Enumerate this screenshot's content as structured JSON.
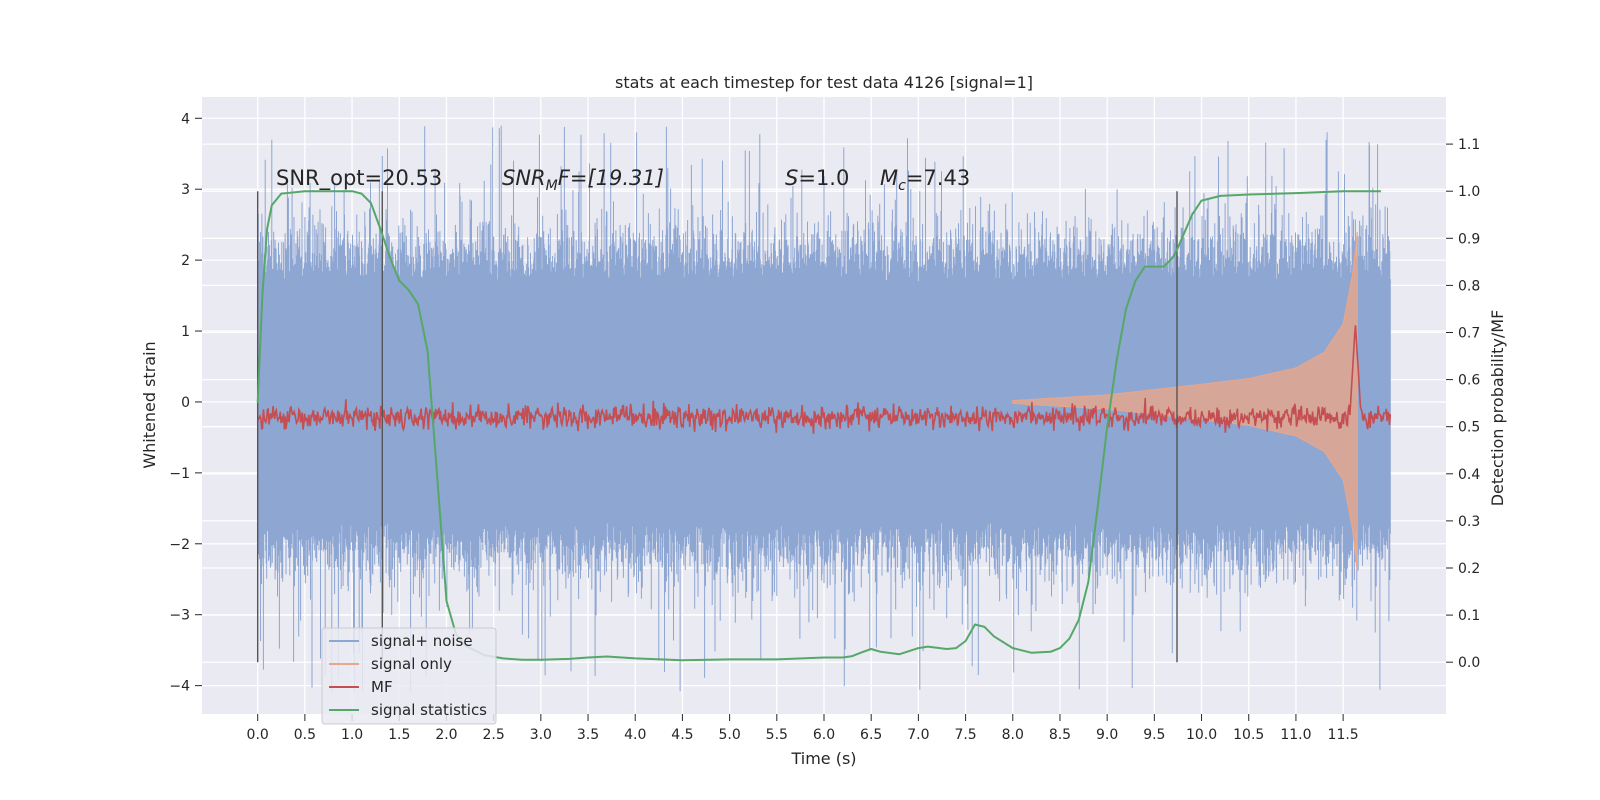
{
  "chart_data": {
    "type": "line",
    "title": "stats at each timestep for test data 4126 [signal=1]",
    "xlabel": "Time (s)",
    "ylabel": "Whitened strain",
    "y2label": "Detection probability/MF",
    "xlim": [
      -0.59,
      12.59
    ],
    "ylim": [
      -4.4,
      4.3
    ],
    "y2lim": [
      -0.11,
      1.2
    ],
    "x_ticks": [
      "0.0",
      "0.5",
      "1.0",
      "1.5",
      "2.0",
      "2.5",
      "3.0",
      "3.5",
      "4.0",
      "4.5",
      "5.0",
      "5.5",
      "6.0",
      "6.5",
      "7.0",
      "7.5",
      "8.0",
      "8.5",
      "9.0",
      "9.5",
      "10.0",
      "10.5",
      "11.0",
      "11.5"
    ],
    "y_ticks": [
      "4",
      "3",
      "2",
      "1",
      "0",
      "−1",
      "−2",
      "−3",
      "−4"
    ],
    "y2_ticks": [
      "1.1",
      "1.0",
      "0.9",
      "0.8",
      "0.7",
      "0.6",
      "0.5",
      "0.4",
      "0.3",
      "0.2",
      "0.1",
      "0.0"
    ],
    "grid": true,
    "legend_position": "lower-left",
    "annotations": {
      "snr_opt": "SNR_opt=20.53",
      "snr_mf_name": "SNR",
      "snr_mf_sub": "M",
      "snr_mf_value": "F=[19.31]",
      "s_name": "S",
      "s_value": "=1.0",
      "mc_name": "M",
      "mc_sub": "c",
      "mc_value": "=7.43"
    },
    "vlines_x": [
      0.0,
      1.32,
      9.74
    ],
    "series": [
      {
        "name": "signal+ noise",
        "color": "#8ea6d2",
        "x_range": [
          0.0,
          12.0
        ],
        "typical_band": [
          -1.7,
          1.7
        ],
        "peak_range": [
          -4.1,
          3.9
        ]
      },
      {
        "name": "signal only",
        "color": "#e9a68a",
        "envelope": {
          "t": [
            8.0,
            9.0,
            10.0,
            10.5,
            11.0,
            11.3,
            11.5,
            11.6,
            11.65
          ],
          "amplitude": [
            0.02,
            0.1,
            0.25,
            0.33,
            0.48,
            0.7,
            1.1,
            1.8,
            2.4
          ]
        }
      },
      {
        "name": "MF",
        "color": "#c44e52",
        "baseline": 0.52,
        "noise_amp": 0.012,
        "peak": {
          "t": 11.63,
          "value": 0.72
        }
      },
      {
        "name": "signal statistics",
        "color": "#55a868",
        "x": [
          0.0,
          0.05,
          0.1,
          0.15,
          0.25,
          0.5,
          1.0,
          1.1,
          1.2,
          1.3,
          1.4,
          1.5,
          1.6,
          1.7,
          1.8,
          1.9,
          2.0,
          2.1,
          2.2,
          2.4,
          2.6,
          2.8,
          3.0,
          3.3,
          3.5,
          3.7,
          4.0,
          4.5,
          5.0,
          5.5,
          6.0,
          6.2,
          6.3,
          6.4,
          6.5,
          6.6,
          6.8,
          7.0,
          7.1,
          7.3,
          7.4,
          7.5,
          7.6,
          7.7,
          7.8,
          8.0,
          8.2,
          8.4,
          8.5,
          8.6,
          8.7,
          8.8,
          8.9,
          9.0,
          9.1,
          9.2,
          9.3,
          9.4,
          9.5,
          9.6,
          9.7,
          9.75,
          9.9,
          10.0,
          10.2,
          10.5,
          11.0,
          11.5,
          11.9
        ],
        "y": [
          0.55,
          0.78,
          0.92,
          0.97,
          0.995,
          1.0,
          1.0,
          0.995,
          0.975,
          0.92,
          0.86,
          0.81,
          0.79,
          0.76,
          0.66,
          0.4,
          0.13,
          0.06,
          0.035,
          0.015,
          0.008,
          0.005,
          0.005,
          0.007,
          0.01,
          0.012,
          0.008,
          0.004,
          0.006,
          0.006,
          0.01,
          0.01,
          0.013,
          0.021,
          0.028,
          0.022,
          0.017,
          0.03,
          0.033,
          0.028,
          0.03,
          0.045,
          0.08,
          0.075,
          0.055,
          0.03,
          0.02,
          0.022,
          0.03,
          0.05,
          0.09,
          0.17,
          0.33,
          0.5,
          0.64,
          0.75,
          0.81,
          0.84,
          0.84,
          0.84,
          0.86,
          0.88,
          0.95,
          0.98,
          0.99,
          0.993,
          0.996,
          1.0,
          1.0
        ]
      }
    ]
  }
}
